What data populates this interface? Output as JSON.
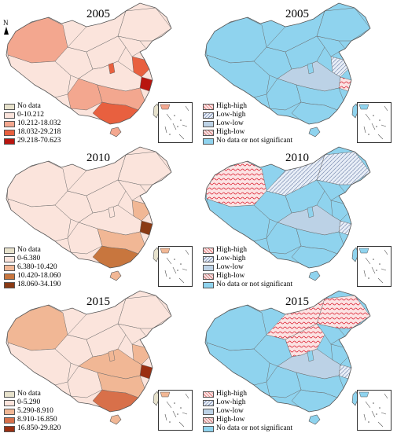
{
  "north_label": "N",
  "panels": [
    {
      "year": "2005",
      "type": "choropleth",
      "legend": [
        {
          "label": "No data",
          "color": "#e7e2cc"
        },
        {
          "label": "0-10.212",
          "color": "#fbe4dc"
        },
        {
          "label": "10.212-18.032",
          "color": "#f3a78f"
        },
        {
          "label": "18.032-29.218",
          "color": "#e8603f"
        },
        {
          "label": "29.218-70.623",
          "color": "#b8150f"
        }
      ]
    },
    {
      "year": "2005",
      "type": "lisa",
      "legend": [
        {
          "label": "High-high",
          "color": "#f8c8c8"
        },
        {
          "label": "Low-high",
          "color": "#dfe6f0"
        },
        {
          "label": "Low-low",
          "color": "#bcd2e6"
        },
        {
          "label": "High-low",
          "color": "#f0d4d4"
        },
        {
          "label": "No data or not significant",
          "color": "#8fd3ee"
        }
      ]
    },
    {
      "year": "2010",
      "type": "choropleth",
      "legend": [
        {
          "label": "No data",
          "color": "#e7e2cc"
        },
        {
          "label": "0-6.380",
          "color": "#fbe4dc"
        },
        {
          "label": "6.380-10.420",
          "color": "#f1b795"
        },
        {
          "label": "10.420-18.060",
          "color": "#c8763e"
        },
        {
          "label": "18.060-34.190",
          "color": "#8a3a14"
        }
      ]
    },
    {
      "year": "2010",
      "type": "lisa",
      "legend": [
        {
          "label": "High-high",
          "color": "#f8c8c8"
        },
        {
          "label": "Low-high",
          "color": "#dfe6f0"
        },
        {
          "label": "Low-low",
          "color": "#bcd2e6"
        },
        {
          "label": "High-low",
          "color": "#f0d4d4"
        },
        {
          "label": "No data or not significant",
          "color": "#8fd3ee"
        }
      ]
    },
    {
      "year": "2015",
      "type": "choropleth",
      "legend": [
        {
          "label": "No data",
          "color": "#e7e2cc"
        },
        {
          "label": "0-5.290",
          "color": "#fbe4dc"
        },
        {
          "label": "5.290-8.910",
          "color": "#f1b795"
        },
        {
          "label": "8.910-16.850",
          "color": "#d8704a"
        },
        {
          "label": "16.850-29.820",
          "color": "#9a2f12"
        }
      ]
    },
    {
      "year": "2015",
      "type": "lisa",
      "legend": [
        {
          "label": "High-high",
          "color": "#f8c8c8"
        },
        {
          "label": "Low-high",
          "color": "#dfe6f0"
        },
        {
          "label": "Low-low",
          "color": "#bcd2e6"
        },
        {
          "label": "High-low",
          "color": "#f0d4d4"
        },
        {
          "label": "No data or not significant",
          "color": "#8fd3ee"
        }
      ]
    }
  ]
}
